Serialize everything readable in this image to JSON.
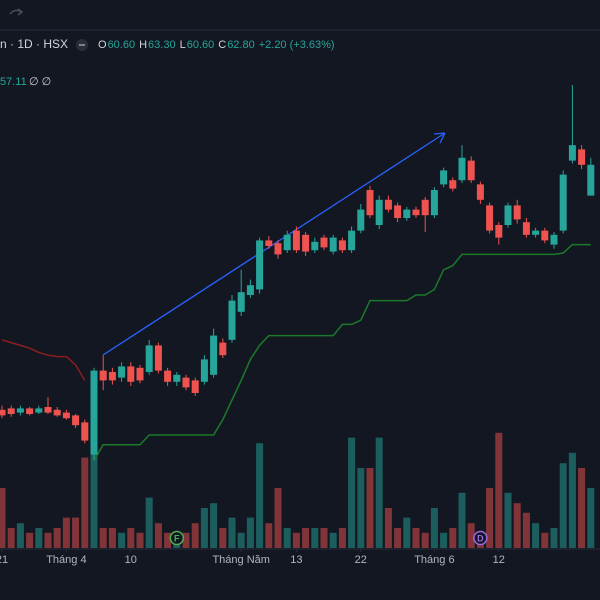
{
  "header": {
    "symbol": "n · 1D · HSX",
    "fields": [
      [
        "O",
        "60.60"
      ],
      [
        "H",
        "63.30"
      ],
      [
        "L",
        "60.60"
      ],
      [
        "C",
        "62.80"
      ]
    ],
    "change": "+2.20 (+3.63%)",
    "indicator": "57.11",
    "indicator_icons": "∅ ∅"
  },
  "chart_data": {
    "type": "candlestick",
    "up_color": "#26a69a",
    "down_color": "#ef5350",
    "volume_up_color": "rgba(38,166,154,0.5)",
    "volume_down_color": "rgba(239,83,80,0.5)",
    "ylim": [
      36,
      70
    ],
    "vlim": [
      0,
      30
    ],
    "xticks": [
      {
        "value": 0,
        "label": "21"
      },
      {
        "value": 7,
        "label": "Tháng 4"
      },
      {
        "value": 14,
        "label": "10"
      },
      {
        "value": 26,
        "label": "Tháng Năm"
      },
      {
        "value": 32,
        "label": "13"
      },
      {
        "value": 39,
        "label": "22"
      },
      {
        "value": 47,
        "label": "Tháng 6"
      },
      {
        "value": 54,
        "label": "12"
      }
    ],
    "open": [
      45.3,
      45.4,
      45.1,
      45.4,
      45.1,
      45.5,
      45.3,
      45.1,
      44.9,
      44.4,
      42.1,
      48.1,
      48.0,
      47.6,
      48.4,
      48.3,
      48.0,
      49.9,
      48.1,
      47.3,
      47.6,
      47.4,
      47.3,
      47.8,
      50.1,
      50.3,
      52.3,
      53.5,
      53.9,
      57.4,
      57.2,
      56.7,
      58.1,
      57.8,
      56.7,
      57.6,
      56.6,
      57.4,
      56.7,
      58.1,
      61.0,
      58.5,
      60.3,
      59.9,
      59.0,
      59.6,
      60.3,
      59.2,
      61.4,
      61.7,
      61.7,
      63.1,
      61.4,
      59.9,
      58.5,
      58.5,
      59.9,
      58.7,
      57.8,
      58.1,
      57.1,
      58.1,
      63.1,
      63.9,
      60.6
    ],
    "high": [
      45.6,
      45.6,
      45.6,
      45.5,
      45.6,
      46.2,
      45.5,
      45.3,
      45.0,
      44.6,
      48.3,
      49.2,
      48.3,
      48.7,
      48.7,
      48.5,
      50.3,
      50.1,
      48.3,
      48.0,
      47.8,
      47.6,
      49.2,
      51.1,
      50.4,
      53.5,
      55.3,
      54.6,
      57.6,
      57.7,
      57.4,
      58.1,
      58.4,
      58.0,
      57.6,
      57.8,
      57.8,
      57.6,
      58.4,
      60.0,
      61.3,
      60.6,
      60.6,
      60.1,
      59.8,
      59.8,
      60.5,
      61.2,
      62.6,
      61.9,
      64.2,
      63.4,
      61.6,
      60.1,
      58.7,
      60.1,
      60.3,
      59.0,
      58.3,
      58.3,
      58.0,
      62.4,
      68.5,
      64.2,
      63.3
    ],
    "low": [
      44.7,
      44.8,
      44.9,
      44.9,
      45.0,
      45.0,
      44.8,
      44.6,
      44.0,
      42.9,
      41.7,
      46.7,
      47.1,
      47.3,
      47.0,
      47.2,
      47.8,
      47.9,
      47.0,
      47.0,
      46.7,
      46.3,
      47.1,
      47.6,
      49.0,
      50.1,
      52.0,
      53.3,
      53.6,
      56.8,
      56.1,
      56.5,
      56.5,
      56.3,
      56.5,
      56.7,
      56.4,
      56.5,
      56.5,
      57.9,
      59.0,
      58.2,
      59.4,
      58.7,
      58.8,
      59.0,
      58.0,
      59.0,
      61.2,
      60.9,
      61.5,
      61.5,
      60.0,
      57.9,
      57.1,
      58.3,
      58.6,
      57.6,
      57.6,
      57.2,
      56.8,
      57.9,
      62.9,
      62.5,
      60.6
    ],
    "close": [
      44.9,
      45.0,
      45.4,
      45.0,
      45.4,
      45.1,
      44.9,
      44.7,
      44.2,
      43.1,
      48.1,
      47.4,
      47.4,
      48.4,
      47.3,
      47.4,
      49.9,
      48.1,
      47.3,
      47.8,
      46.9,
      46.5,
      48.9,
      50.6,
      49.2,
      53.1,
      53.7,
      54.2,
      57.4,
      57.0,
      56.4,
      57.8,
      56.7,
      56.6,
      57.3,
      56.9,
      57.6,
      56.7,
      58.1,
      59.6,
      59.2,
      60.3,
      59.6,
      59.0,
      59.6,
      59.2,
      59.2,
      61.0,
      62.4,
      61.1,
      63.3,
      61.7,
      60.3,
      58.1,
      57.6,
      59.9,
      58.9,
      57.8,
      58.1,
      57.4,
      57.8,
      62.1,
      64.2,
      62.8,
      62.8
    ],
    "volume": [
      7.5,
      2.5,
      3.1,
      1.9,
      2.5,
      1.9,
      2.5,
      3.8,
      3.8,
      11.3,
      14.8,
      2.5,
      2.5,
      1.9,
      2.5,
      1.9,
      6.3,
      3.1,
      1.9,
      1.3,
      1.9,
      3.1,
      5,
      5.6,
      2.5,
      3.8,
      1.9,
      3.8,
      13.1,
      3.1,
      7.5,
      2.5,
      1.9,
      2.5,
      2.5,
      2.5,
      1.9,
      2.5,
      13.8,
      10,
      10,
      13.8,
      5,
      2.5,
      3.8,
      2.5,
      1.9,
      5,
      1.9,
      2.5,
      6.9,
      3.1,
      1.9,
      7.5,
      14.4,
      6.9,
      5.6,
      4.4,
      3.1,
      1.9,
      2.5,
      10.6,
      11.9,
      10,
      7.5
    ],
    "lines": [
      {
        "color": "#8b1e1e",
        "values": [
          50.3,
          50.1,
          49.9,
          49.7,
          49.4,
          49.2,
          49.1,
          49.1,
          48.5,
          47.4,
          null,
          null,
          null,
          null,
          null,
          null,
          null,
          null,
          null,
          null,
          null,
          null,
          null,
          null,
          null,
          null,
          null,
          null,
          null,
          null,
          null,
          null,
          null,
          null,
          null,
          null,
          null,
          null,
          null,
          null,
          null,
          null,
          null,
          null,
          null,
          null,
          null,
          null,
          null,
          null,
          null,
          null,
          null,
          null,
          null,
          null,
          null,
          null,
          null,
          null,
          null,
          null,
          null,
          null,
          null
        ]
      },
      {
        "color": "#1b7a2a",
        "values": [
          null,
          null,
          null,
          null,
          null,
          null,
          null,
          null,
          null,
          null,
          41.7,
          42.8,
          42.8,
          42.8,
          42.8,
          42.8,
          43.5,
          43.5,
          43.5,
          43.5,
          43.5,
          43.5,
          43.5,
          43.5,
          44.6,
          46.0,
          47.4,
          48.9,
          49.9,
          50.6,
          50.6,
          50.6,
          50.6,
          50.6,
          50.6,
          50.6,
          50.6,
          51.4,
          51.4,
          51.7,
          53.1,
          53.1,
          53.1,
          53.1,
          53.1,
          53.5,
          53.5,
          53.9,
          55.3,
          55.6,
          56.4,
          56.4,
          56.4,
          56.4,
          56.4,
          56.4,
          56.4,
          56.4,
          56.4,
          56.4,
          56.4,
          56.5,
          57.1,
          57.1,
          57.1
        ]
      }
    ],
    "events": [
      {
        "index": 19,
        "label": "F",
        "color": "#4caf50"
      },
      {
        "index": 52,
        "label": "D",
        "color": "#9c6ade"
      }
    ]
  }
}
